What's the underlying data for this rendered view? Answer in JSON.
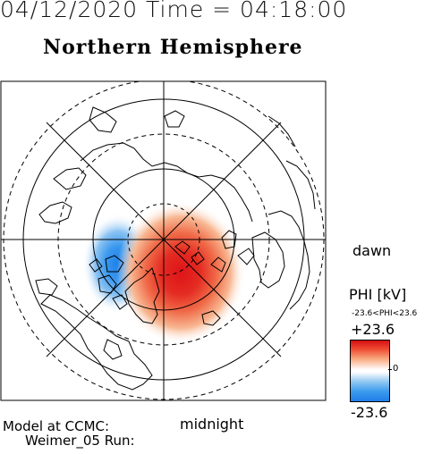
{
  "header": {
    "datetime": "04/12/2020 Time = 04:18:00",
    "title": "Northern Hemisphere"
  },
  "map": {
    "dawn_label": "dawn",
    "midnight_label": "midnight",
    "projection": "polar-north",
    "pattern": "two-cell-potential",
    "positive_color": "#e0191c",
    "negative_color": "#1f86ea",
    "coastline_color": "#000000"
  },
  "colorbar": {
    "unit_label": "PHI [kV]",
    "range_label": "-23.6<PHI<23.6",
    "max_label": "+23.6",
    "zero_label": "0",
    "min_label": "-23.6",
    "top_color": "#d50f14",
    "bottom_color": "#1e7ee8"
  },
  "footer": {
    "model_line1": "Model at CCMC:",
    "model_line2": "Weimer_05 Run:"
  }
}
